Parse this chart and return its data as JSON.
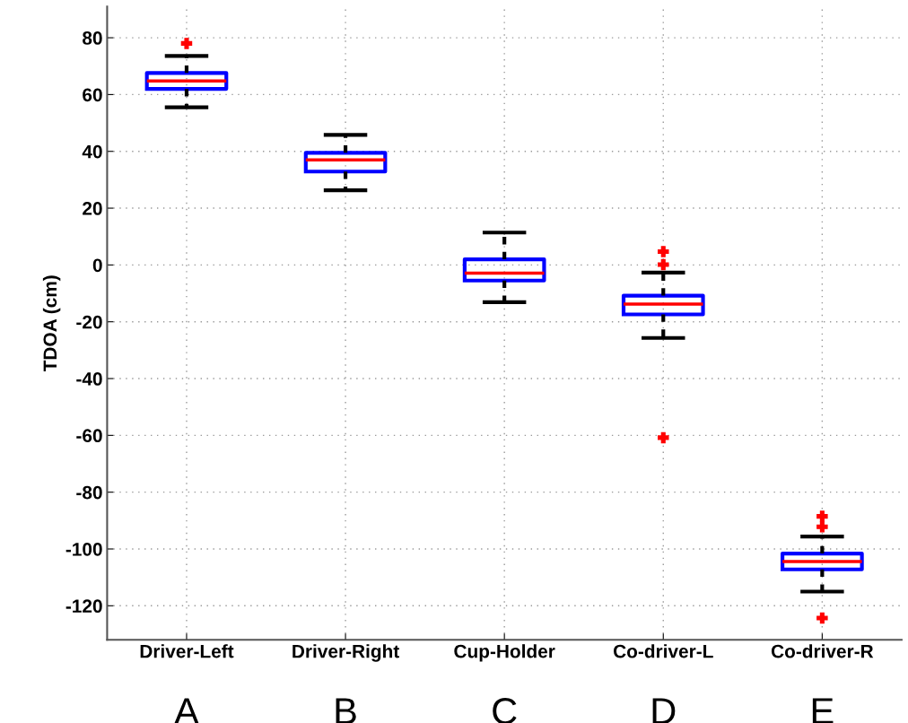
{
  "chart_data": {
    "type": "box",
    "ylabel": "TDOA (cm)",
    "categories": [
      "Driver-Left",
      "Driver-Right",
      "Cup-Holder",
      "Co-driver-L",
      "Co-driver-R"
    ],
    "boxes": [
      {
        "low": 55.5,
        "q1": 62,
        "median": 64.8,
        "q3": 67.6,
        "high": 73.6,
        "outliers": [
          78
        ]
      },
      {
        "low": 26.3,
        "q1": 32.9,
        "median": 37,
        "q3": 39.5,
        "high": 45.8
      },
      {
        "low": -13.1,
        "q1": -5.5,
        "median": -2.9,
        "q3": 2,
        "high": 11.4
      },
      {
        "low": -25.7,
        "q1": -17.4,
        "median": -13.8,
        "q3": -10.8,
        "high": -2.7,
        "outliers": [
          4.7,
          0.1,
          -60.8
        ]
      },
      {
        "low": -115,
        "q1": -107.2,
        "median": -104.4,
        "q3": -101.6,
        "high": -95.6,
        "outliers": [
          -88.5,
          -92.2,
          -124.3
        ]
      }
    ],
    "color": "#0000ff",
    "ylim": [
      -132,
      91
    ],
    "yticks": [
      -120,
      -100,
      -80,
      -60,
      -40,
      -20,
      0,
      20,
      40,
      60,
      80
    ],
    "grid": true,
    "annotations": [
      "A",
      "B",
      "C",
      "D",
      "E"
    ]
  }
}
